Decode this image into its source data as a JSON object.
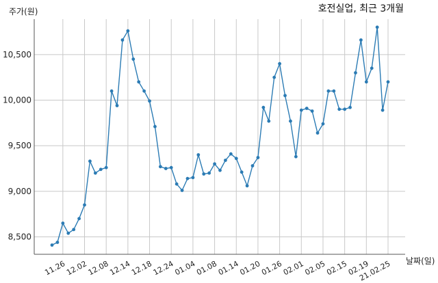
{
  "chart_data": {
    "type": "line",
    "title": "호전실업, 최근 3개월",
    "ylabel": "주가(원)",
    "xlabel": "날짜(일)",
    "ylim": [
      8300,
      10900
    ],
    "yticks": [
      8500,
      9000,
      9500,
      10000,
      10500
    ],
    "ytick_labels": [
      "8,500",
      "9,000",
      "9,500",
      "10,000",
      "10,500"
    ],
    "xtick_labels": [
      "11.26",
      "12.02",
      "12.08",
      "12.14",
      "12.18",
      "12.24",
      "01.04",
      "01.08",
      "01.14",
      "01.20",
      "01.26",
      "02.01",
      "02.05",
      "02.15",
      "02.19",
      "21.02.25"
    ],
    "xtick_index": [
      2,
      6,
      10,
      14,
      18,
      22,
      26,
      30,
      34,
      38,
      42,
      46,
      50,
      54,
      58,
      62
    ],
    "grid": true,
    "series": [
      {
        "values": [
          8410,
          8440,
          8650,
          8540,
          8580,
          8700,
          8850,
          9330,
          9200,
          9240,
          9260,
          10100,
          9940,
          10660,
          10760,
          10450,
          10200,
          10100,
          9990,
          9710,
          9270,
          9250,
          9260,
          9080,
          9010,
          9140,
          9150,
          9400,
          9190,
          9200,
          9300,
          9230,
          9340,
          9410,
          9360,
          9210,
          9060,
          9280,
          9370,
          9920,
          9770,
          10250,
          10400,
          10050,
          9770,
          9380,
          9890,
          9910,
          9880,
          9640,
          9740,
          10100,
          10100,
          9900,
          9900,
          9920,
          10300,
          10660,
          10200,
          10350,
          10800,
          9890,
          10200
        ]
      }
    ]
  }
}
